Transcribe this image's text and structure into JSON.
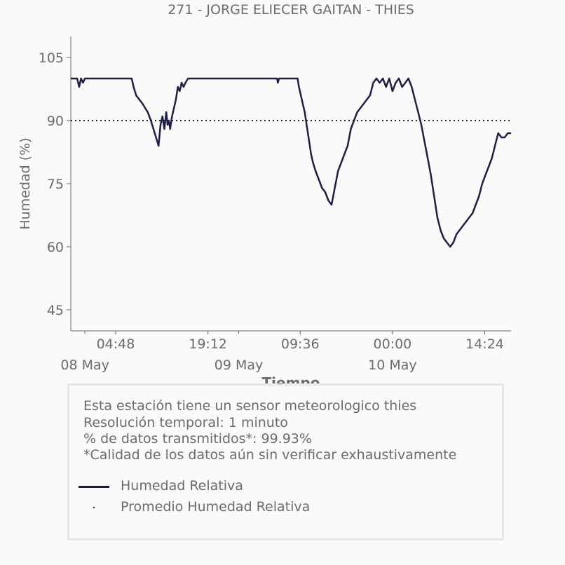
{
  "chart_data": {
    "type": "line",
    "title": "271 - JORGE ELIECER GAITAN - THIES",
    "xlabel": "Tiempo",
    "ylabel": "Humedad (%)",
    "ylim": [
      40,
      110
    ],
    "yticks": [
      45,
      60,
      75,
      90,
      105
    ],
    "xticks": [
      "04:48",
      "19:12",
      "09:36",
      "00:00",
      "14:24"
    ],
    "date_labels": [
      "08 May",
      "09 May",
      "10 May"
    ],
    "xlim_hours": [
      -2.2,
      66.5
    ],
    "grid": false,
    "series": [
      {
        "name": "Humedad Relativa",
        "color": "#1f1f45",
        "x_hours": [
          -2.2,
          -1.2,
          -0.9,
          -0.6,
          -0.3,
          0,
          2,
          4,
          6,
          7.3,
          7.6,
          8,
          8.5,
          9,
          9.4,
          9.8,
          10.3,
          10.7,
          11.1,
          11.5,
          11.8,
          12.1,
          12.4,
          12.7,
          12.9,
          13.1,
          13.3,
          13.6,
          13.9,
          14.2,
          14.5,
          14.8,
          15.1,
          15.4,
          15.7,
          16.1,
          16.5,
          17,
          17.5,
          18,
          19,
          22,
          25,
          27,
          30,
          30.1,
          30.3,
          31,
          32,
          33.2,
          33.4,
          33.7,
          34,
          34.3,
          34.6,
          35,
          35.3,
          35.6,
          36,
          36.5,
          37,
          37.5,
          38,
          38.5,
          39,
          39.5,
          40,
          40.5,
          41,
          41.5,
          42,
          42.5,
          43,
          43.5,
          44,
          44.5,
          45,
          45.5,
          46,
          46.5,
          47,
          47.5,
          48,
          48.5,
          49,
          49.5,
          50,
          50.5,
          51,
          51.5,
          52,
          52.5,
          53,
          53.5,
          54,
          54.5,
          55,
          55.5,
          56,
          56.5,
          57,
          57.5,
          58,
          58.5,
          59,
          59.5,
          60,
          60.5,
          61,
          61.5,
          62,
          62.5,
          63,
          63.5,
          64,
          64.5,
          65,
          65.5,
          66,
          66.5
        ],
        "values": [
          100,
          100,
          98,
          100,
          99,
          100,
          100,
          100,
          100,
          100,
          98,
          96,
          95,
          94,
          93,
          92,
          90,
          88,
          86,
          84,
          89,
          91,
          88,
          92,
          89,
          90,
          88,
          91,
          93,
          95,
          98,
          97,
          99,
          98,
          99,
          100,
          100,
          100,
          100,
          100,
          100,
          100,
          100,
          100,
          100,
          99,
          100,
          100,
          100,
          100,
          98,
          96,
          94,
          92,
          89,
          85,
          82,
          80,
          78,
          76,
          74,
          73,
          71,
          70,
          74,
          78,
          80,
          82,
          84,
          88,
          90,
          92,
          93,
          94,
          95,
          96,
          99,
          100,
          99,
          100,
          98,
          100,
          97,
          99,
          100,
          98,
          99,
          100,
          98,
          95,
          92,
          89,
          85,
          81,
          77,
          72,
          67,
          64,
          62,
          61,
          60,
          61,
          63,
          64,
          65,
          66,
          67,
          68,
          70,
          72,
          75,
          77,
          79,
          81,
          84,
          87,
          86,
          86,
          87,
          87
        ]
      },
      {
        "name": "Promedio Humedad Relativa",
        "color": "#1f1f45",
        "style": "dotted",
        "constant": 90
      }
    ]
  },
  "info": {
    "line1": "Esta estación tiene un sensor meteorologico thies",
    "line2": "Resolución temporal: 1 minuto",
    "line3": "% de datos transmitidos*: 99.93%",
    "line4": "*Calidad de los datos aún sin verificar exhaustivamente"
  },
  "legend": {
    "item1": "Humedad Relativa",
    "item2": "Promedio Humedad Relativa"
  }
}
